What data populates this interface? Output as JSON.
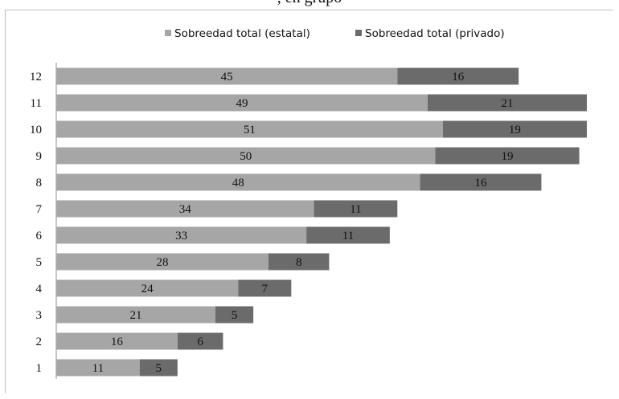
{
  "header": {
    "partial_text": ", en grupo"
  },
  "colors": {
    "estatal": "#a6a6a6",
    "privado": "#6b6b6b",
    "axis": "#8c8c8c"
  },
  "chart_data": {
    "type": "bar",
    "orientation": "horizontal",
    "stacked": true,
    "categories": [
      "1",
      "2",
      "3",
      "4",
      "5",
      "6",
      "7",
      "8",
      "9",
      "10",
      "11",
      "12"
    ],
    "series": [
      {
        "name": "Sobreedad total (estatal)",
        "values": [
          11,
          16,
          21,
          24,
          28,
          33,
          34,
          48,
          50,
          51,
          49,
          45
        ]
      },
      {
        "name": "Sobreedad total (privado)",
        "values": [
          5,
          6,
          5,
          7,
          8,
          11,
          11,
          16,
          19,
          19,
          21,
          16
        ]
      }
    ],
    "xlim": [
      0,
      70
    ],
    "grid": false,
    "legend": "top-center"
  }
}
